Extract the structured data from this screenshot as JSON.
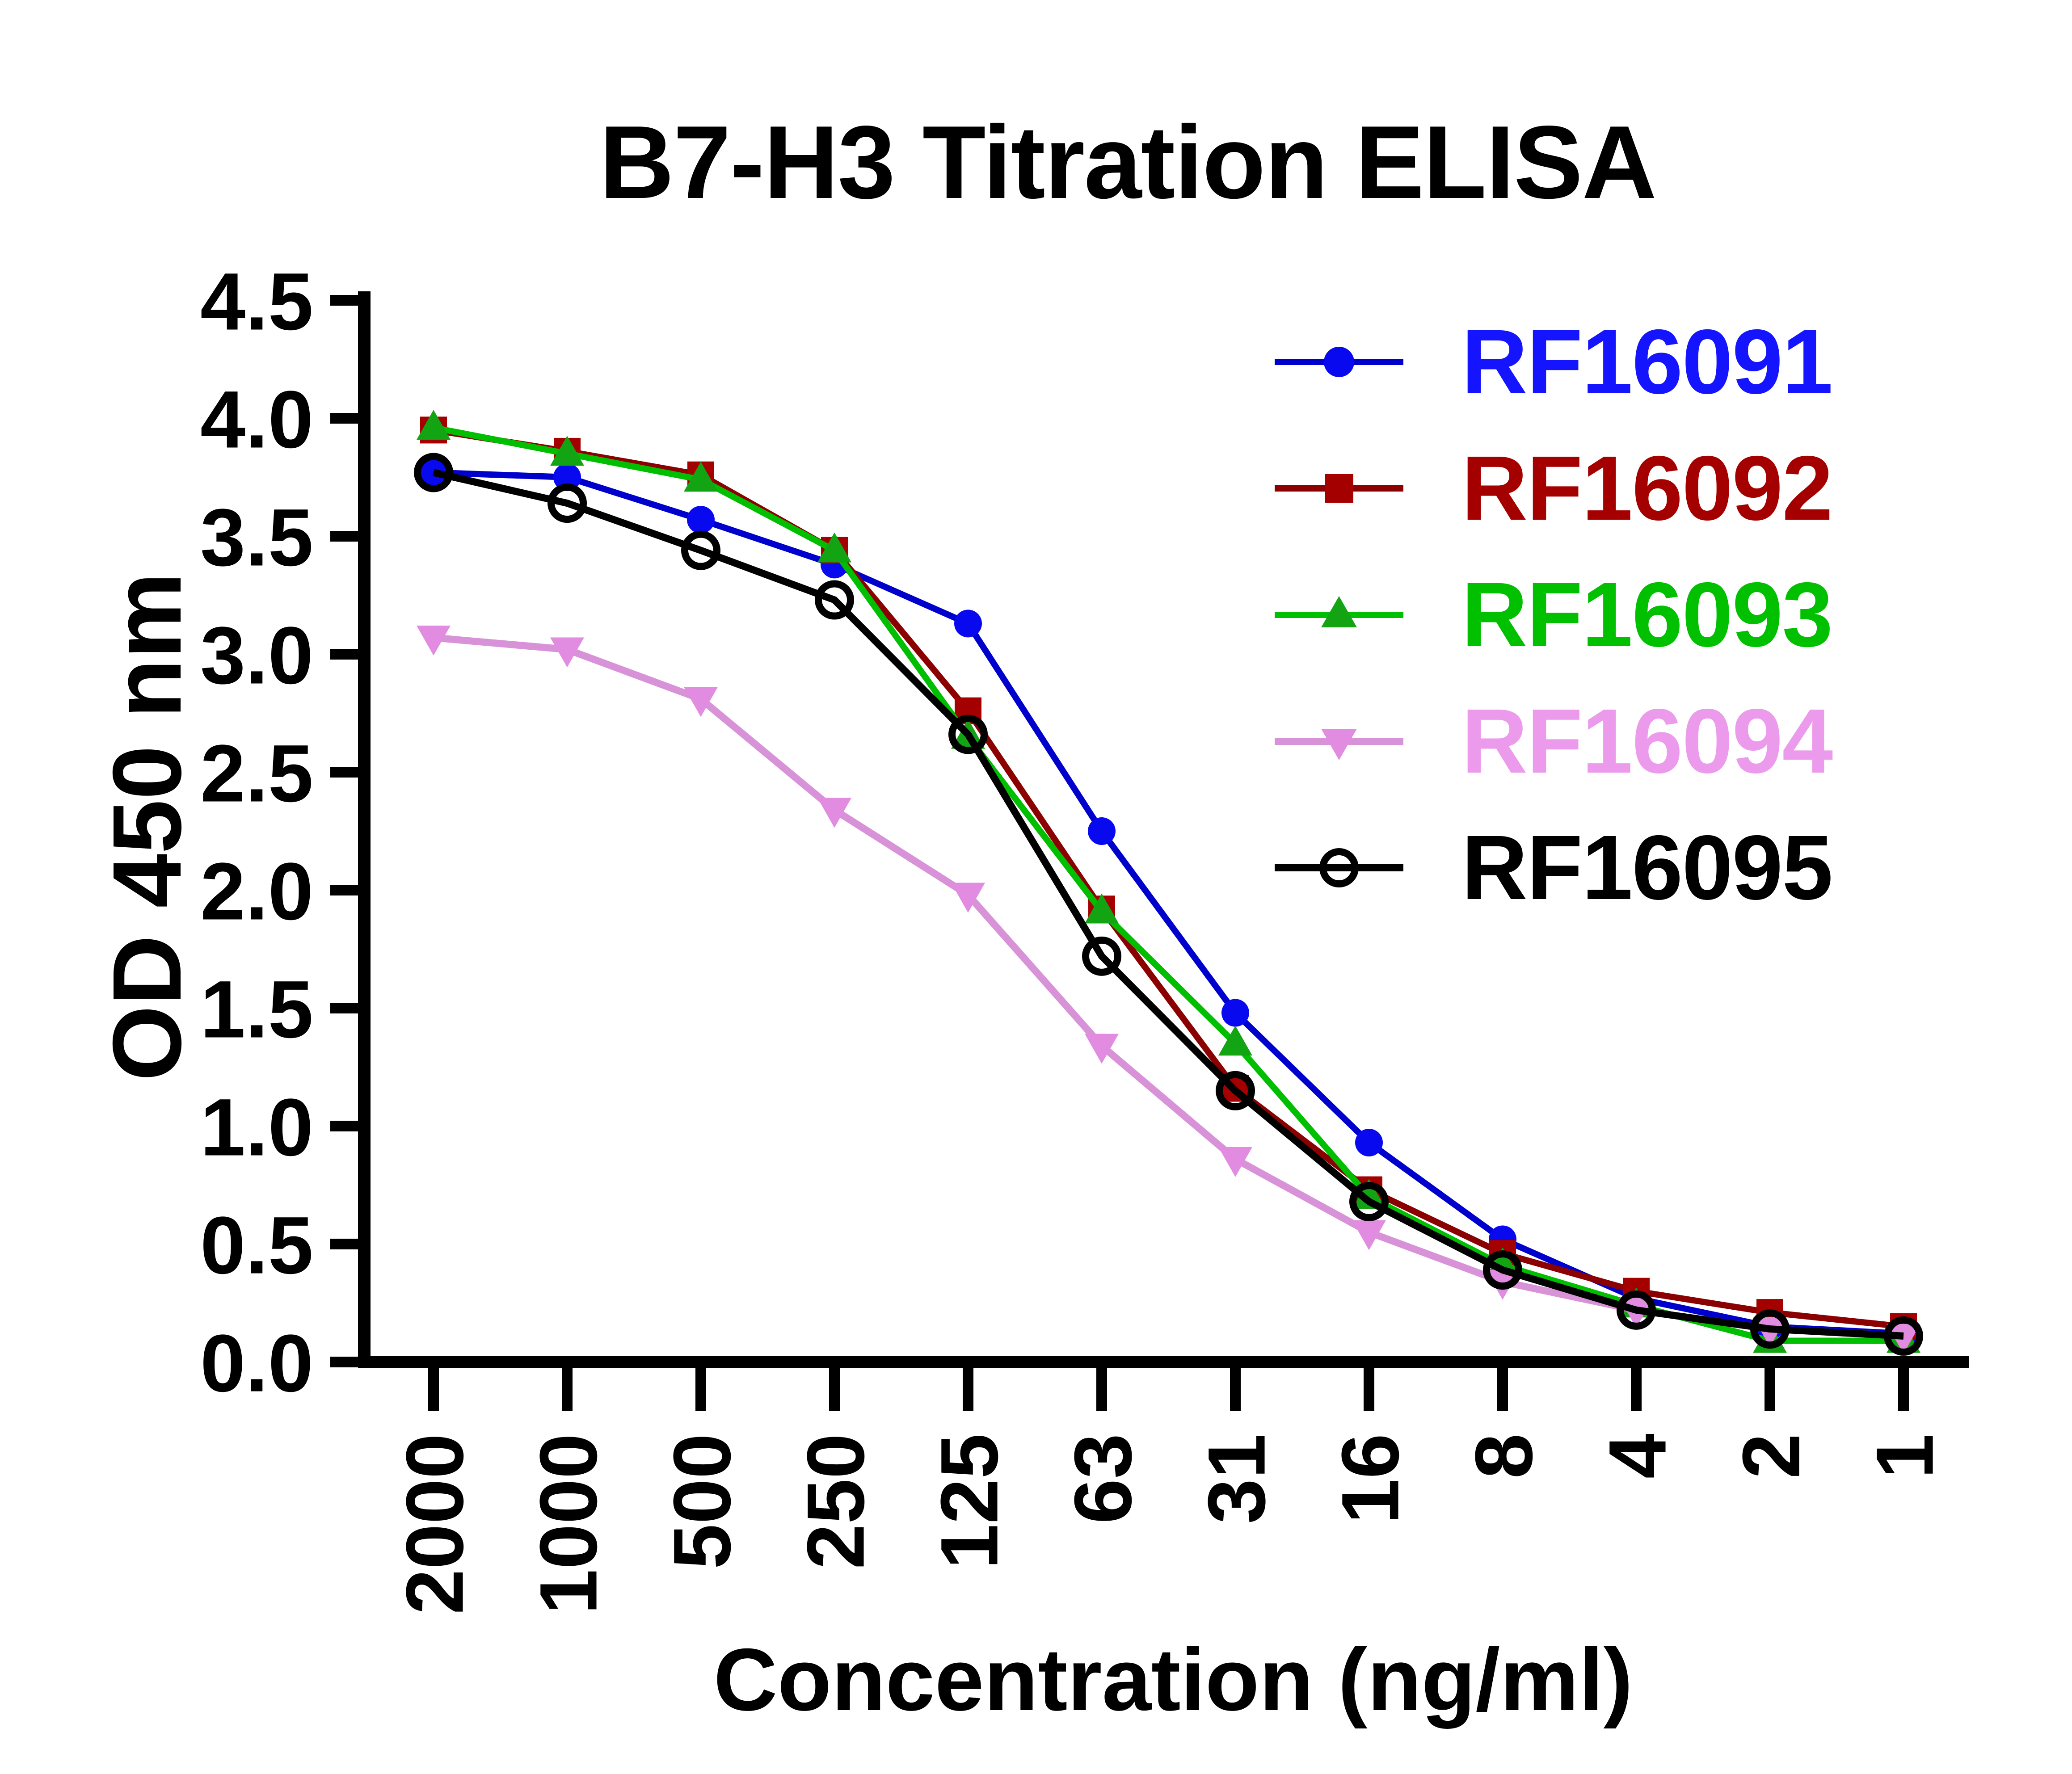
{
  "title": "B7-H3 Titration ELISA",
  "chart_data": {
    "type": "line",
    "title": "B7-H3 Titration ELISA",
    "xlabel": "Concentration (ng/ml)",
    "ylabel": "OD 450 nm",
    "x_categories": [
      "2000",
      "1000",
      "500",
      "250",
      "125",
      "63",
      "31",
      "16",
      "8",
      "4",
      "2",
      "1"
    ],
    "y_ticks": [
      "0.0",
      "0.5",
      "1.0",
      "1.5",
      "2.0",
      "2.5",
      "3.0",
      "3.5",
      "4.0",
      "4.5"
    ],
    "ylim": [
      0,
      4.5
    ],
    "grid": false,
    "legend_position": "top-right-inside",
    "series": [
      {
        "name": "RF16091",
        "marker": "circle",
        "line_color": "#0000CD",
        "marker_color": "#0909F0",
        "text_color": "#1414FF",
        "values": [
          3.77,
          3.75,
          3.57,
          3.38,
          3.13,
          2.25,
          1.48,
          0.93,
          0.52,
          0.27,
          0.15,
          0.12
        ]
      },
      {
        "name": "RF16092",
        "marker": "square",
        "line_color": "#8B0000",
        "marker_color": "#A40000",
        "text_color": "#A40000",
        "values": [
          3.95,
          3.86,
          3.76,
          3.44,
          2.76,
          1.92,
          1.16,
          0.73,
          0.46,
          0.3,
          0.21,
          0.15
        ]
      },
      {
        "name": "RF16093",
        "marker": "triangle-up",
        "line_color": "#00BE00",
        "marker_color": "#12A412",
        "text_color": "#00C000",
        "values": [
          3.96,
          3.85,
          3.74,
          3.44,
          2.65,
          1.91,
          1.35,
          0.7,
          0.41,
          0.24,
          0.09,
          0.09
        ]
      },
      {
        "name": "RF16094",
        "marker": "triangle-down",
        "line_color": "#D893D8",
        "marker_color": "#E18BE1",
        "text_color": "#EC9BEC",
        "values": [
          3.07,
          3.02,
          2.81,
          2.34,
          1.98,
          1.34,
          0.86,
          0.55,
          0.34,
          0.22,
          0.14,
          0.11
        ]
      },
      {
        "name": "RF16095",
        "marker": "open-circle",
        "line_color": "#000000",
        "marker_color": "#000000",
        "text_color": "#000000",
        "values": [
          3.77,
          3.64,
          3.44,
          3.23,
          2.66,
          1.72,
          1.15,
          0.68,
          0.39,
          0.22,
          0.14,
          0.11
        ]
      }
    ]
  }
}
